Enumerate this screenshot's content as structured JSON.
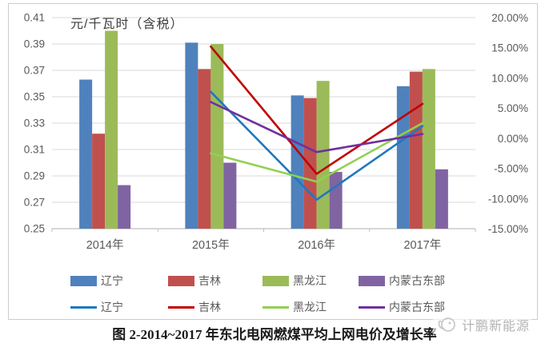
{
  "chart_data": {
    "type": "bar+line combo",
    "title_caption": "图 2-2014~2017 年东北电网燃煤平均上网电价及增长率",
    "unit_label": "元/千瓦时（含税）",
    "categories": [
      "2014年",
      "2015年",
      "2016年",
      "2017年"
    ],
    "bar_series": [
      {
        "name": "辽宁",
        "color": "#4F81BD",
        "values": [
          0.363,
          0.391,
          0.351,
          0.358
        ]
      },
      {
        "name": "吉林",
        "color": "#C0504D",
        "values": [
          0.322,
          0.371,
          0.349,
          0.369
        ]
      },
      {
        "name": "黑龙江",
        "color": "#9BBB59",
        "values": [
          0.4,
          0.39,
          0.362,
          0.371
        ]
      },
      {
        "name": "内蒙古东部",
        "color": "#8064A2",
        "values": [
          0.283,
          0.3,
          0.293,
          0.295
        ]
      }
    ],
    "line_series": [
      {
        "name": "辽宁",
        "color": "#1F78BE",
        "x_categories": [
          "2015年",
          "2016年",
          "2017年"
        ],
        "values": [
          7.7,
          -10.2,
          2.0
        ]
      },
      {
        "name": "吉林",
        "color": "#C00000",
        "x_categories": [
          "2015年",
          "2016年",
          "2017年"
        ],
        "values": [
          15.2,
          -5.9,
          5.7
        ]
      },
      {
        "name": "黑龙江",
        "color": "#92D050",
        "x_categories": [
          "2015年",
          "2016年",
          "2017年"
        ],
        "values": [
          -2.5,
          -7.2,
          2.5
        ]
      },
      {
        "name": "内蒙古东部",
        "color": "#7030A0",
        "x_categories": [
          "2015年",
          "2016年",
          "2017年"
        ],
        "values": [
          6.0,
          -2.3,
          0.7
        ]
      }
    ],
    "left_axis": {
      "min": 0.25,
      "max": 0.41,
      "step": 0.02,
      "ticks": [
        "0.41",
        "0.39",
        "0.37",
        "0.35",
        "0.33",
        "0.31",
        "0.29",
        "0.27",
        "0.25"
      ]
    },
    "right_axis": {
      "min": -15,
      "max": 20,
      "step": 5,
      "ticks": [
        "20.00%",
        "15.00%",
        "10.00%",
        "5.00%",
        "0.00%",
        "-5.00%",
        "-10.00%",
        "-15.00%"
      ]
    },
    "layout": {
      "grid": true,
      "gridline_color": "#D9D9D9",
      "axis_line_color": "#BFBFBF",
      "tick_text_color": "#595959",
      "legend_position": "bottom"
    }
  },
  "watermark": {
    "text": "计鹏新能源"
  }
}
